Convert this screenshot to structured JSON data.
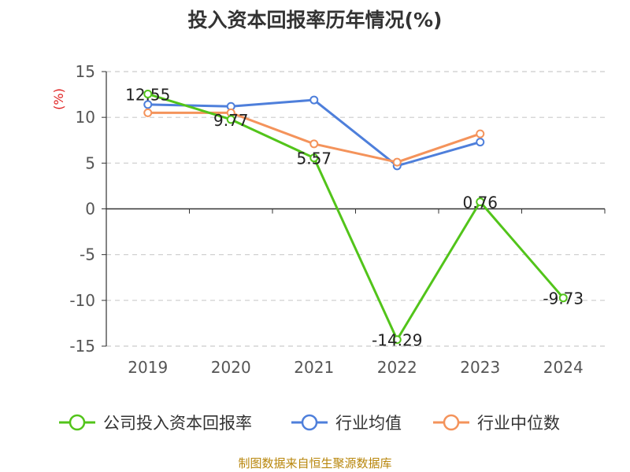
{
  "chart_data": {
    "type": "line",
    "title": "投入资本回报率历年情况(%)",
    "ylabel": "(%)",
    "categories": [
      "2019",
      "2020",
      "2021",
      "2022",
      "2023",
      "2024"
    ],
    "ylim": [
      -15,
      15
    ],
    "yticks": [
      -15,
      -10,
      -5,
      0,
      5,
      10,
      15
    ],
    "grid": true,
    "legend_position": "bottom",
    "series": [
      {
        "name": "公司投入资本回报率",
        "color": "#52c41a",
        "values": [
          12.55,
          9.77,
          5.57,
          -14.29,
          0.76,
          -9.73
        ],
        "labels": [
          "12.55",
          "9.77",
          "5.57",
          "-14.29",
          "0.76",
          "-9.73"
        ]
      },
      {
        "name": "行业均值",
        "color": "#4e7fdb",
        "values": [
          11.4,
          11.2,
          11.9,
          4.7,
          7.3,
          null
        ]
      },
      {
        "name": "行业中位数",
        "color": "#f4935b",
        "values": [
          10.5,
          10.5,
          7.1,
          5.1,
          8.2,
          null
        ]
      }
    ]
  },
  "footer": {
    "source": "制图数据来自恒生聚源数据库"
  }
}
